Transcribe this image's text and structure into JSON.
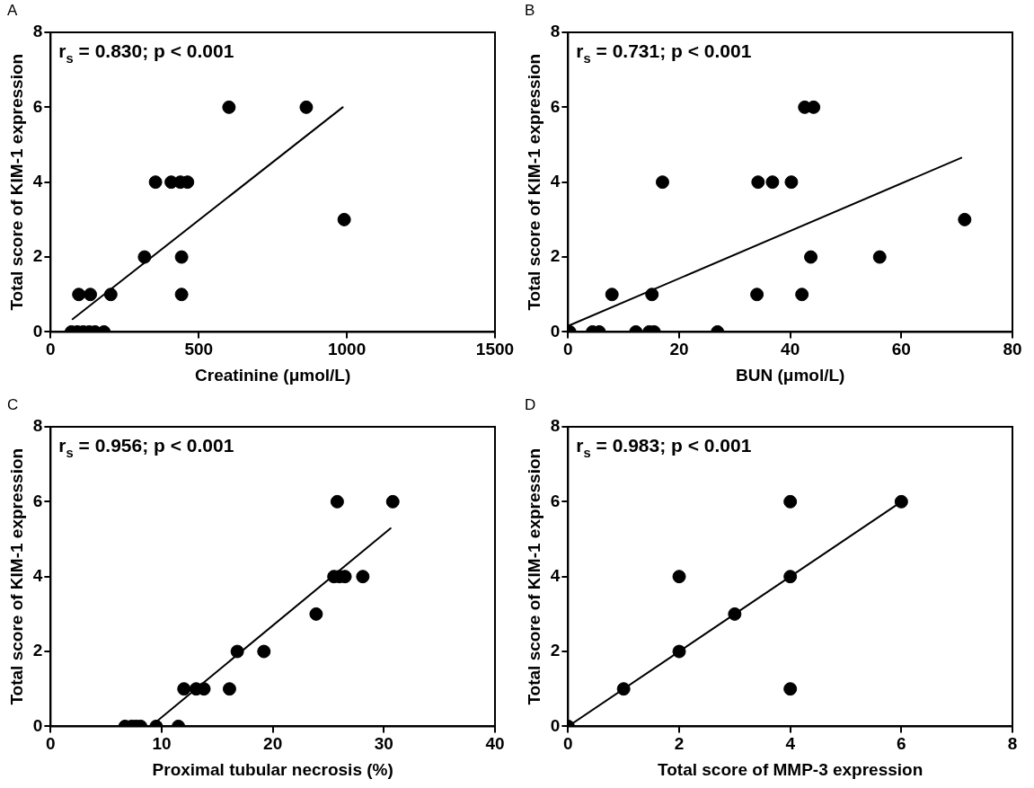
{
  "chart_data": [
    {
      "type": "scatter",
      "title": "A",
      "xlabel": "Creatinine (μmol/L)",
      "ylabel": "Total score of KIM-1 expression",
      "xlim": [
        0,
        1500
      ],
      "xticks": [
        0,
        500,
        1000,
        1500
      ],
      "ylim": [
        0,
        8
      ],
      "yticks": [
        0,
        2,
        4,
        6,
        8
      ],
      "grid": false,
      "legend": false,
      "marker": "circle",
      "annotations": [
        "r$_{s}$ = 0.830; p < 0.001"
      ],
      "series": [
        {
          "color": "#000000",
          "x": [
            70,
            90,
            110,
            130,
            150,
            180,
            95,
            134,
            203,
            442,
            317,
            442,
            354,
            407,
            438,
            462,
            602,
            863,
            991
          ],
          "values": [
            0,
            0,
            0,
            0,
            0,
            0,
            1,
            1,
            1,
            1,
            2,
            2,
            4,
            4,
            4,
            4,
            6,
            6,
            3
          ]
        },
        {
          "type": "line",
          "marker": "none",
          "color": "#000000",
          "x": [
            74,
            986
          ],
          "values": [
            0.34,
            6.0
          ]
        }
      ]
    },
    {
      "type": "scatter",
      "title": "B",
      "xlabel": "BUN (μmol/L)",
      "ylabel": "Total score of KIM-1 expression",
      "xlim": [
        0,
        80
      ],
      "xticks": [
        0,
        20,
        40,
        60,
        80
      ],
      "ylim": [
        0,
        8
      ],
      "yticks": [
        0,
        2,
        4,
        6,
        8
      ],
      "grid": false,
      "legend": false,
      "marker": "circle",
      "annotations": [
        "r$_{s}$ = 0.731; p < 0.001"
      ],
      "series": [
        {
          "color": "#000000",
          "x": [
            0.3,
            4.4,
            5.6,
            12.2,
            14.6,
            15.5,
            26.9,
            7.9,
            15.1,
            34.0,
            42.1,
            43.7,
            56.1,
            71.4,
            17.0,
            34.2,
            36.8,
            40.2,
            42.6,
            44.2
          ],
          "values": [
            0,
            0,
            0,
            0,
            0,
            0,
            0,
            1,
            1,
            1,
            1,
            2,
            2,
            3,
            4,
            4,
            4,
            4,
            6,
            6
          ]
        },
        {
          "type": "line",
          "marker": "none",
          "color": "#000000",
          "x": [
            0,
            70.8
          ],
          "values": [
            0.16,
            4.65
          ]
        }
      ]
    },
    {
      "type": "scatter",
      "title": "C",
      "xlabel": "Proximal tubular necrosis (%)",
      "ylabel": "Total score of KIM-1 expression",
      "xlim": [
        0,
        40
      ],
      "xticks": [
        0,
        10,
        20,
        30,
        40
      ],
      "ylim": [
        0,
        8
      ],
      "yticks": [
        0,
        2,
        4,
        6,
        8
      ],
      "grid": false,
      "legend": false,
      "marker": "circle",
      "annotations": [
        "r$_{s}$ = 0.956; p < 0.001"
      ],
      "series": [
        {
          "color": "#000000",
          "x": [
            6.7,
            7.3,
            7.7,
            8.1,
            9.5,
            11.5,
            12.0,
            13.1,
            13.8,
            16.1,
            16.8,
            19.2,
            23.9,
            25.5,
            26.0,
            26.5,
            28.1,
            25.8,
            30.8
          ],
          "values": [
            0,
            0,
            0,
            0,
            0,
            0,
            1,
            1,
            1,
            1,
            2,
            2,
            3,
            4,
            4,
            4,
            4,
            6,
            6
          ]
        },
        {
          "type": "line",
          "marker": "none",
          "color": "#000000",
          "x": [
            9.0,
            30.6
          ],
          "values": [
            0,
            5.29
          ]
        }
      ]
    },
    {
      "type": "scatter",
      "title": "D",
      "xlabel": "Total score of MMP-3 expression",
      "ylabel": "Total score of KIM-1 expression",
      "xlim": [
        0,
        8
      ],
      "xticks": [
        0,
        2,
        4,
        6,
        8
      ],
      "ylim": [
        0,
        8
      ],
      "yticks": [
        0,
        2,
        4,
        6,
        8
      ],
      "grid": false,
      "legend": false,
      "marker": "circle",
      "annotations": [
        "r$_{s}$ = 0.983; p < 0.001"
      ],
      "series": [
        {
          "color": "#000000",
          "x": [
            0,
            1,
            2,
            2,
            3,
            4,
            4,
            4,
            6
          ],
          "values": [
            0,
            1,
            2,
            4,
            3,
            1,
            4,
            6,
            6
          ]
        },
        {
          "type": "line",
          "marker": "none",
          "color": "#000000",
          "x": [
            0,
            6
          ],
          "values": [
            0,
            6
          ]
        }
      ]
    }
  ]
}
